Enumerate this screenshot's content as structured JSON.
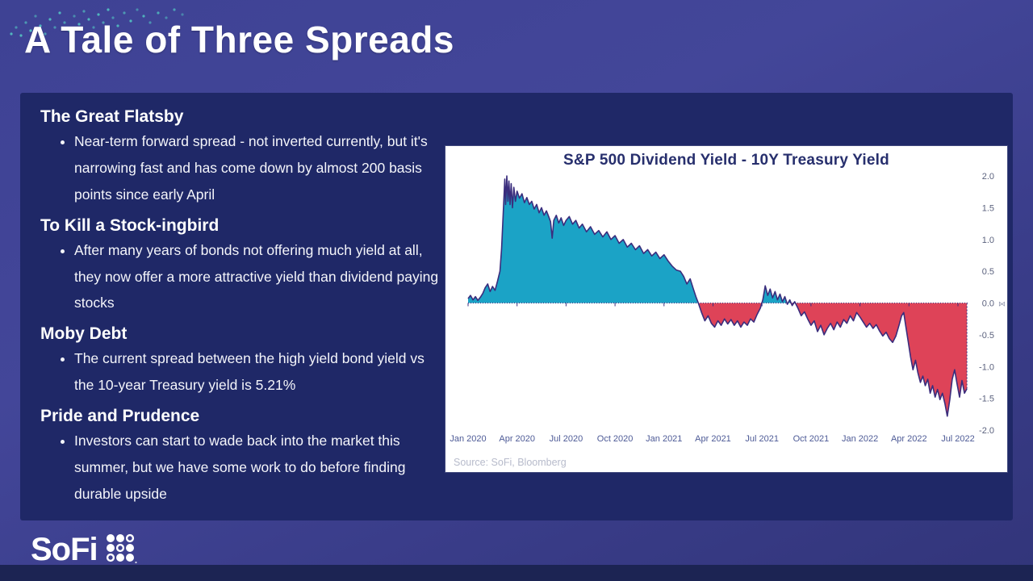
{
  "slide": {
    "title": "A Tale of Three Spreads",
    "sections": [
      {
        "heading": "The Great Flatsby",
        "bullets": [
          "Near-term forward spread - not inverted currently, but it's narrowing fast and has come down by almost 200 basis points since early April"
        ]
      },
      {
        "heading": "To Kill a Stock-ingbird",
        "bullets": [
          "After many years of bonds not offering much yield at all, they now offer a more attractive yield than dividend paying stocks"
        ]
      },
      {
        "heading": "Moby Debt",
        "bullets": [
          "The current spread between the high yield bond yield vs the 10-year Treasury yield is 5.21%"
        ]
      },
      {
        "heading": "Pride and Prudence",
        "bullets": [
          "Investors can start to wade back into the market this summer, but we have some work to do before finding durable upside"
        ]
      }
    ],
    "logo_text": "SoFi"
  },
  "icons": {
    "axis_cursor": "⋈",
    "logo_grid": "sofi-dot-grid",
    "dots_decoration": "teal-dot-scatter"
  },
  "chart_data": {
    "type": "area",
    "title": "S&P 500 Dividend Yield - 10Y Treasury Yield",
    "source": "Source: SoFi, Bloomberg",
    "xlabel": "",
    "ylabel": "",
    "ylim": [
      -2.0,
      2.0
    ],
    "y_ticks": [
      2.0,
      1.5,
      1.0,
      0.5,
      0.0,
      -0.5,
      -1.0,
      -1.5,
      -2.0
    ],
    "x_tick_labels": [
      "Jan 2020",
      "Apr 2020",
      "Jul 2020",
      "Oct 2020",
      "Jan 2021",
      "Apr 2021",
      "Jul 2021",
      "Oct 2021",
      "Jan 2022",
      "Apr 2022",
      "Jul 2022"
    ],
    "x_tick_months": [
      0,
      3,
      6,
      9,
      12,
      15,
      18,
      21,
      24,
      27,
      30
    ],
    "grid": false,
    "legend": "none",
    "colors": {
      "positive_fill": "#1ba3c6",
      "negative_fill": "#de4358",
      "line": "#3a2d7d",
      "background": "#ffffff"
    },
    "points": [
      [
        0,
        0.07
      ],
      [
        0.15,
        0.12
      ],
      [
        0.3,
        0.05
      ],
      [
        0.45,
        0.1
      ],
      [
        0.6,
        0.04
      ],
      [
        0.75,
        0.09
      ],
      [
        0.9,
        0.15
      ],
      [
        1.05,
        0.24
      ],
      [
        1.2,
        0.3
      ],
      [
        1.35,
        0.18
      ],
      [
        1.5,
        0.26
      ],
      [
        1.65,
        0.2
      ],
      [
        1.8,
        0.34
      ],
      [
        1.95,
        0.5
      ],
      [
        2.05,
        0.85
      ],
      [
        2.15,
        1.4
      ],
      [
        2.25,
        1.95
      ],
      [
        2.3,
        1.55
      ],
      [
        2.37,
        2.0
      ],
      [
        2.44,
        1.6
      ],
      [
        2.5,
        1.92
      ],
      [
        2.57,
        1.55
      ],
      [
        2.64,
        1.88
      ],
      [
        2.72,
        1.5
      ],
      [
        2.8,
        1.82
      ],
      [
        2.9,
        1.6
      ],
      [
        3.0,
        1.76
      ],
      [
        3.15,
        1.65
      ],
      [
        3.3,
        1.72
      ],
      [
        3.45,
        1.58
      ],
      [
        3.6,
        1.66
      ],
      [
        3.75,
        1.55
      ],
      [
        3.9,
        1.6
      ],
      [
        4.05,
        1.48
      ],
      [
        4.2,
        1.55
      ],
      [
        4.35,
        1.42
      ],
      [
        4.5,
        1.5
      ],
      [
        4.65,
        1.38
      ],
      [
        4.8,
        1.45
      ],
      [
        4.95,
        1.35
      ],
      [
        5.05,
        1.28
      ],
      [
        5.15,
        1.02
      ],
      [
        5.25,
        1.3
      ],
      [
        5.4,
        1.38
      ],
      [
        5.55,
        1.26
      ],
      [
        5.7,
        1.34
      ],
      [
        5.85,
        1.22
      ],
      [
        6.0,
        1.3
      ],
      [
        6.2,
        1.36
      ],
      [
        6.4,
        1.24
      ],
      [
        6.6,
        1.3
      ],
      [
        6.8,
        1.18
      ],
      [
        7.0,
        1.24
      ],
      [
        7.25,
        1.12
      ],
      [
        7.5,
        1.2
      ],
      [
        7.75,
        1.08
      ],
      [
        8.0,
        1.14
      ],
      [
        8.25,
        1.04
      ],
      [
        8.5,
        1.12
      ],
      [
        8.75,
        1.0
      ],
      [
        9.0,
        1.06
      ],
      [
        9.25,
        0.94
      ],
      [
        9.5,
        1.0
      ],
      [
        9.75,
        0.88
      ],
      [
        10.0,
        0.94
      ],
      [
        10.25,
        0.84
      ],
      [
        10.5,
        0.9
      ],
      [
        10.75,
        0.78
      ],
      [
        11.0,
        0.84
      ],
      [
        11.25,
        0.74
      ],
      [
        11.5,
        0.8
      ],
      [
        11.75,
        0.7
      ],
      [
        12.0,
        0.76
      ],
      [
        12.25,
        0.66
      ],
      [
        12.5,
        0.58
      ],
      [
        12.75,
        0.52
      ],
      [
        13.0,
        0.5
      ],
      [
        13.2,
        0.42
      ],
      [
        13.4,
        0.3
      ],
      [
        13.6,
        0.38
      ],
      [
        13.8,
        0.22
      ],
      [
        13.95,
        0.1
      ],
      [
        14.1,
        0.0
      ],
      [
        14.3,
        -0.15
      ],
      [
        14.5,
        -0.28
      ],
      [
        14.7,
        -0.2
      ],
      [
        14.9,
        -0.32
      ],
      [
        15.1,
        -0.38
      ],
      [
        15.3,
        -0.28
      ],
      [
        15.5,
        -0.35
      ],
      [
        15.7,
        -0.25
      ],
      [
        15.9,
        -0.33
      ],
      [
        16.1,
        -0.26
      ],
      [
        16.3,
        -0.35
      ],
      [
        16.5,
        -0.28
      ],
      [
        16.7,
        -0.38
      ],
      [
        16.9,
        -0.3
      ],
      [
        17.1,
        -0.35
      ],
      [
        17.3,
        -0.25
      ],
      [
        17.5,
        -0.3
      ],
      [
        17.7,
        -0.18
      ],
      [
        17.9,
        -0.08
      ],
      [
        18.05,
        0.05
      ],
      [
        18.2,
        0.27
      ],
      [
        18.35,
        0.12
      ],
      [
        18.5,
        0.22
      ],
      [
        18.65,
        0.08
      ],
      [
        18.8,
        0.18
      ],
      [
        18.95,
        0.05
      ],
      [
        19.1,
        0.14
      ],
      [
        19.25,
        0.02
      ],
      [
        19.4,
        0.1
      ],
      [
        19.55,
        -0.02
      ],
      [
        19.7,
        0.05
      ],
      [
        19.85,
        -0.04
      ],
      [
        20.0,
        0.02
      ],
      [
        20.2,
        -0.08
      ],
      [
        20.4,
        -0.2
      ],
      [
        20.6,
        -0.14
      ],
      [
        20.8,
        -0.25
      ],
      [
        21.0,
        -0.35
      ],
      [
        21.2,
        -0.28
      ],
      [
        21.4,
        -0.45
      ],
      [
        21.6,
        -0.35
      ],
      [
        21.8,
        -0.5
      ],
      [
        22.0,
        -0.4
      ],
      [
        22.2,
        -0.32
      ],
      [
        22.4,
        -0.42
      ],
      [
        22.6,
        -0.3
      ],
      [
        22.8,
        -0.38
      ],
      [
        23.0,
        -0.26
      ],
      [
        23.2,
        -0.32
      ],
      [
        23.4,
        -0.2
      ],
      [
        23.6,
        -0.28
      ],
      [
        23.8,
        -0.15
      ],
      [
        24.0,
        -0.22
      ],
      [
        24.2,
        -0.3
      ],
      [
        24.4,
        -0.38
      ],
      [
        24.6,
        -0.32
      ],
      [
        24.8,
        -0.4
      ],
      [
        25.0,
        -0.34
      ],
      [
        25.2,
        -0.44
      ],
      [
        25.4,
        -0.52
      ],
      [
        25.6,
        -0.46
      ],
      [
        25.8,
        -0.56
      ],
      [
        26.0,
        -0.62
      ],
      [
        26.2,
        -0.52
      ],
      [
        26.4,
        -0.34
      ],
      [
        26.55,
        -0.2
      ],
      [
        26.68,
        -0.15
      ],
      [
        26.8,
        -0.35
      ],
      [
        26.95,
        -0.6
      ],
      [
        27.1,
        -0.85
      ],
      [
        27.25,
        -1.05
      ],
      [
        27.4,
        -0.9
      ],
      [
        27.55,
        -1.1
      ],
      [
        27.7,
        -1.25
      ],
      [
        27.85,
        -1.15
      ],
      [
        28.0,
        -1.3
      ],
      [
        28.15,
        -1.2
      ],
      [
        28.3,
        -1.42
      ],
      [
        28.45,
        -1.3
      ],
      [
        28.6,
        -1.48
      ],
      [
        28.75,
        -1.36
      ],
      [
        28.9,
        -1.52
      ],
      [
        29.05,
        -1.42
      ],
      [
        29.2,
        -1.58
      ],
      [
        29.35,
        -1.78
      ],
      [
        29.5,
        -1.52
      ],
      [
        29.65,
        -1.2
      ],
      [
        29.8,
        -1.05
      ],
      [
        29.95,
        -1.28
      ],
      [
        30.1,
        -1.48
      ],
      [
        30.25,
        -1.22
      ],
      [
        30.4,
        -1.42
      ],
      [
        30.55,
        -1.35
      ]
    ]
  }
}
